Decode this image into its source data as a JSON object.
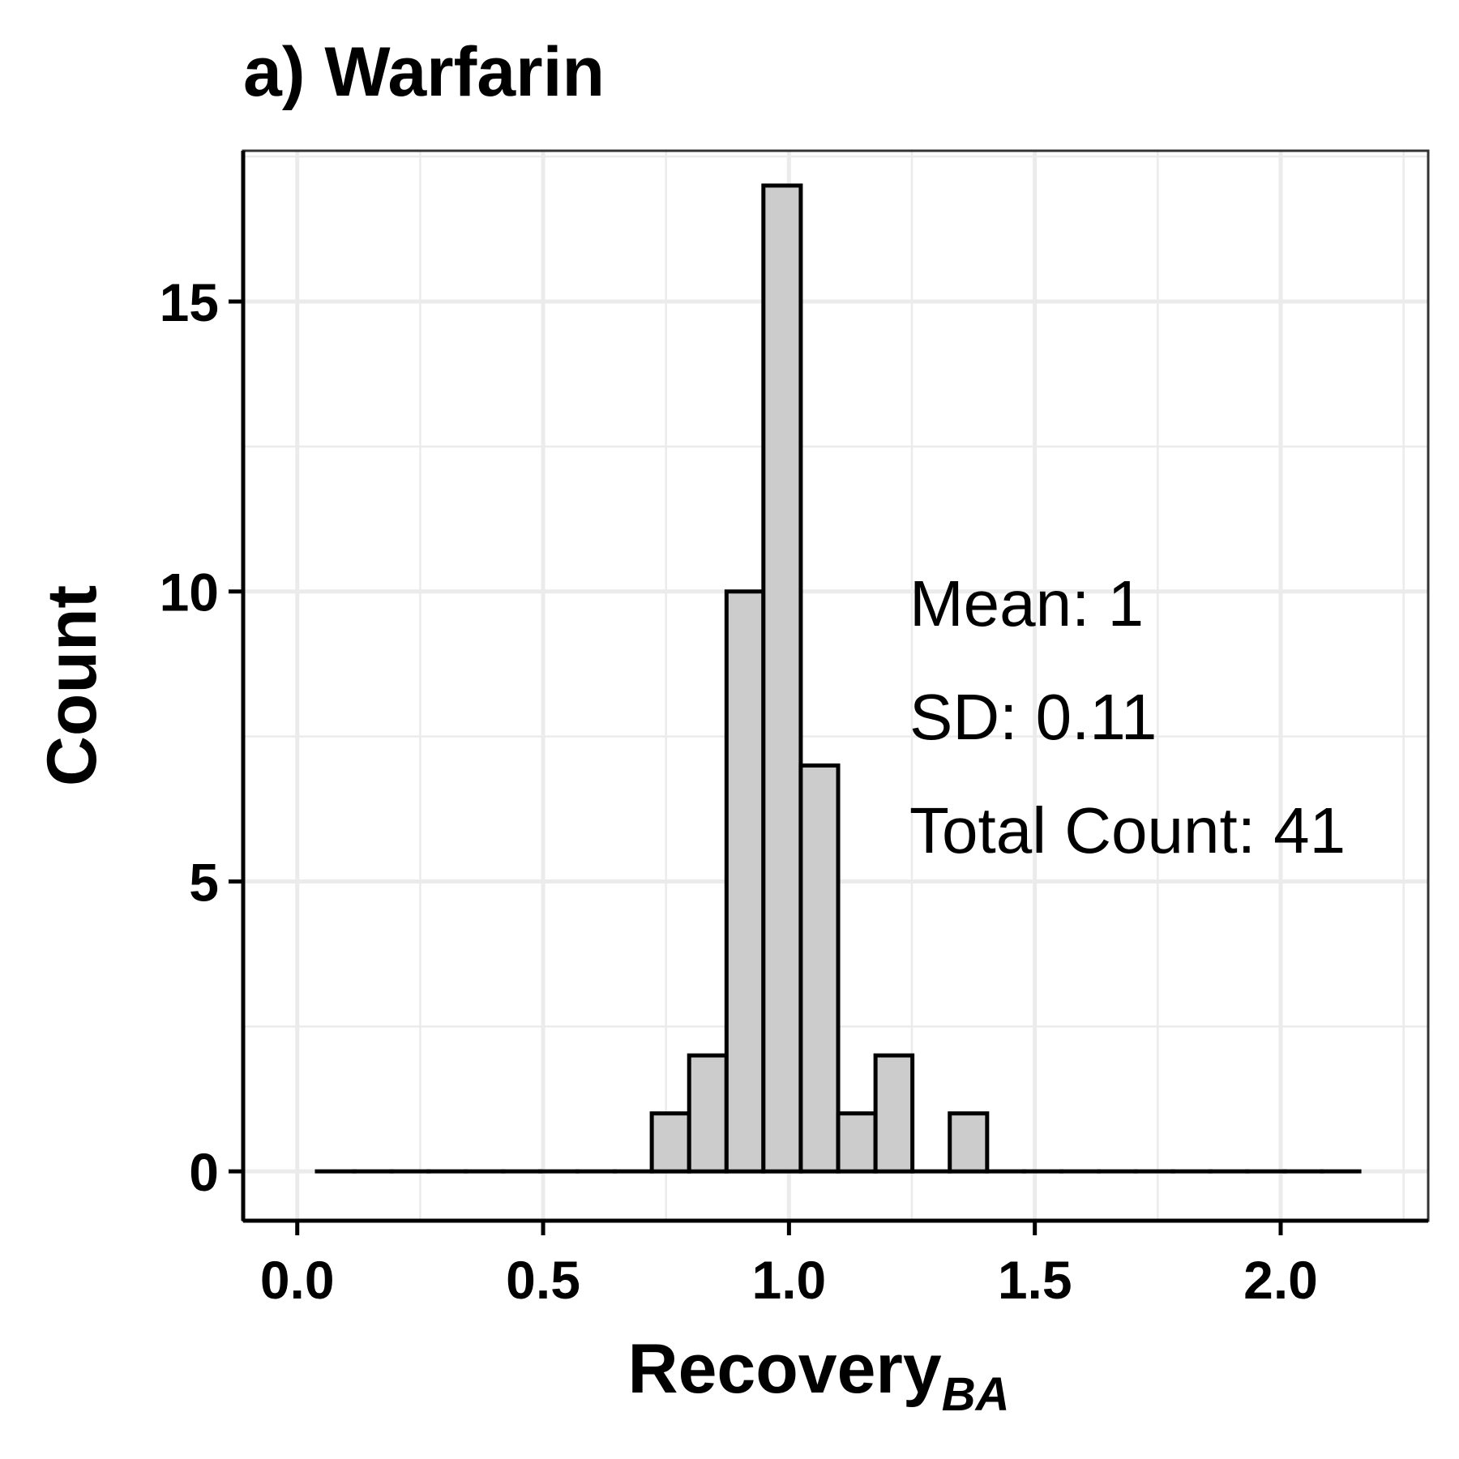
{
  "chart_data": {
    "type": "bar",
    "subtype": "histogram",
    "title": "a) Warfarin",
    "xlabel": "Recovery",
    "xlabel_subscript": "BA",
    "ylabel": "Count",
    "xlim": [
      -0.11,
      2.3
    ],
    "ylim": [
      -0.85,
      17.6
    ],
    "x_ticks": [
      0.0,
      0.5,
      1.0,
      1.5,
      2.0
    ],
    "x_tick_labels": [
      "0.0",
      "0.5",
      "1.0",
      "1.5",
      "2.0"
    ],
    "y_ticks": [
      0,
      5,
      10,
      15
    ],
    "y_tick_labels": [
      "0",
      "5",
      "10",
      "15"
    ],
    "grid": true,
    "bin_width": 0.0757,
    "bins": [
      {
        "x0": 0.04,
        "x1": 0.116,
        "count": 0
      },
      {
        "x0": 0.116,
        "x1": 0.192,
        "count": 0
      },
      {
        "x0": 0.192,
        "x1": 0.267,
        "count": 0
      },
      {
        "x0": 0.267,
        "x1": 0.343,
        "count": 0
      },
      {
        "x0": 0.343,
        "x1": 0.419,
        "count": 0
      },
      {
        "x0": 0.419,
        "x1": 0.494,
        "count": 0
      },
      {
        "x0": 0.494,
        "x1": 0.57,
        "count": 0
      },
      {
        "x0": 0.57,
        "x1": 0.646,
        "count": 0
      },
      {
        "x0": 0.646,
        "x1": 0.721,
        "count": 0
      },
      {
        "x0": 0.721,
        "x1": 0.797,
        "count": 1
      },
      {
        "x0": 0.797,
        "x1": 0.873,
        "count": 2
      },
      {
        "x0": 0.873,
        "x1": 0.948,
        "count": 10
      },
      {
        "x0": 0.948,
        "x1": 1.024,
        "count": 17
      },
      {
        "x0": 1.024,
        "x1": 1.1,
        "count": 7
      },
      {
        "x0": 1.1,
        "x1": 1.176,
        "count": 1
      },
      {
        "x0": 1.176,
        "x1": 1.251,
        "count": 2
      },
      {
        "x0": 1.251,
        "x1": 1.327,
        "count": 0
      },
      {
        "x0": 1.327,
        "x1": 1.403,
        "count": 1
      },
      {
        "x0": 1.403,
        "x1": 1.478,
        "count": 0
      },
      {
        "x0": 1.478,
        "x1": 1.554,
        "count": 0
      },
      {
        "x0": 1.554,
        "x1": 1.63,
        "count": 0
      },
      {
        "x0": 1.63,
        "x1": 1.705,
        "count": 0
      },
      {
        "x0": 1.705,
        "x1": 1.781,
        "count": 0
      },
      {
        "x0": 1.781,
        "x1": 1.857,
        "count": 0
      },
      {
        "x0": 1.857,
        "x1": 1.932,
        "count": 0
      },
      {
        "x0": 1.932,
        "x1": 2.008,
        "count": 0
      },
      {
        "x0": 2.008,
        "x1": 2.084,
        "count": 0
      },
      {
        "x0": 2.084,
        "x1": 2.16,
        "count": 0
      }
    ],
    "annotations": [
      "Mean: 1",
      "SD: 0.11",
      "Total Count: 41"
    ],
    "colors": {
      "bar_fill": "#cccccc",
      "bar_stroke": "#000000",
      "grid": "#ebebeb",
      "axis": "#000000"
    }
  }
}
